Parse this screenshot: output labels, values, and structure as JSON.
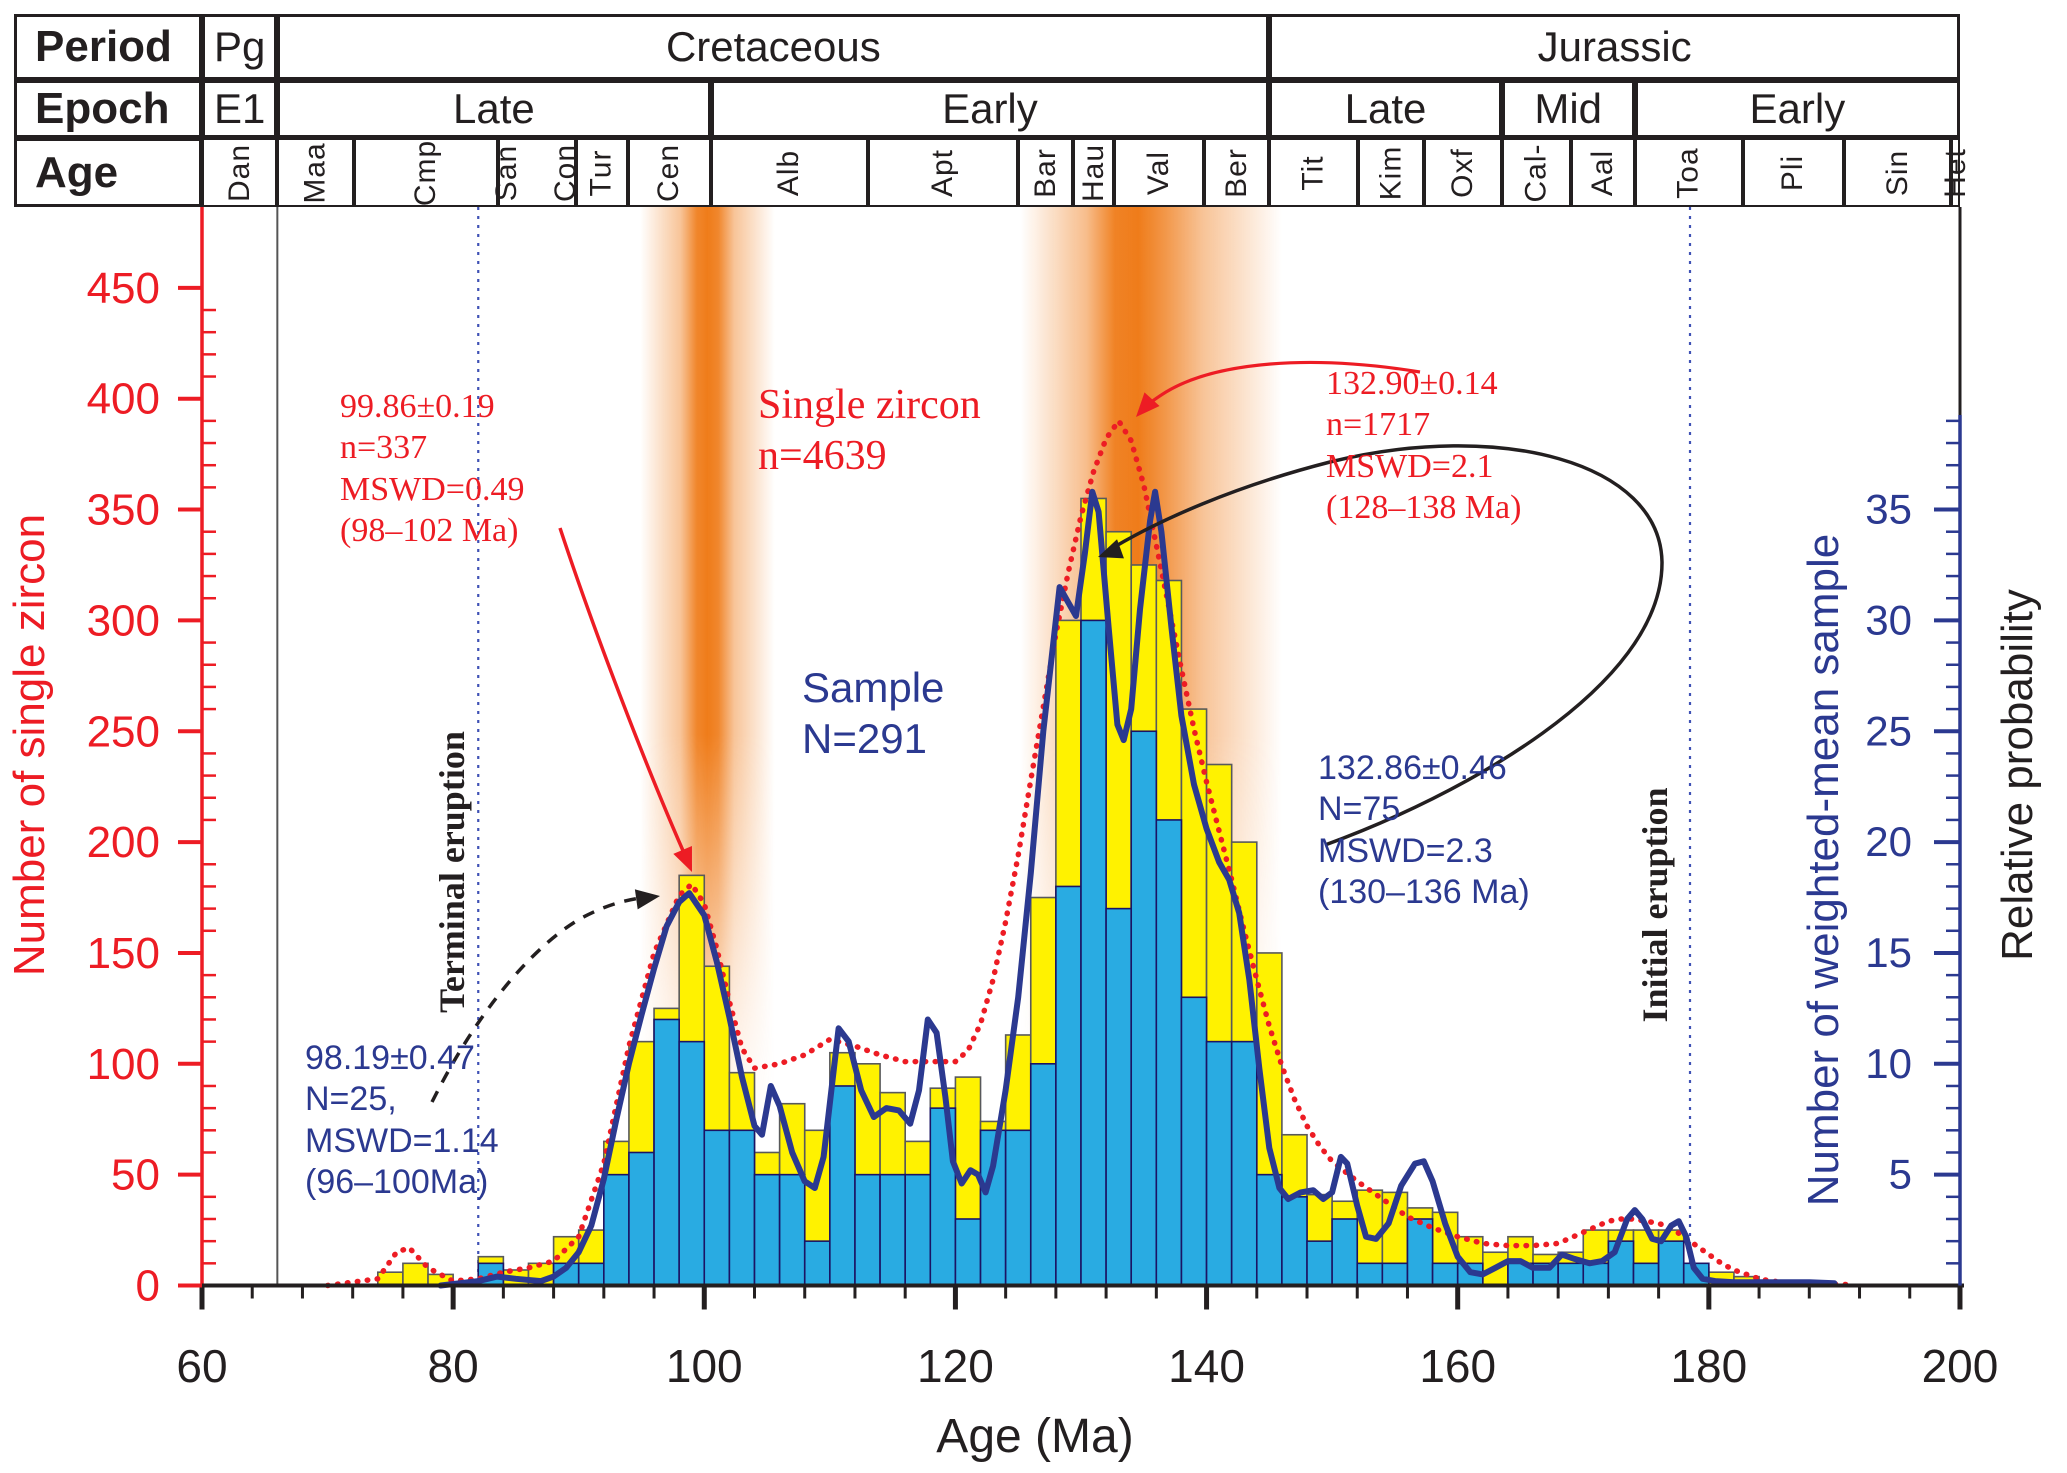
{
  "figure": {
    "x_axis": {
      "label": "Age (Ma)",
      "min": 60,
      "max": 200,
      "major_step": 20,
      "minor_step": 4
    },
    "y_left": {
      "label": "Number of single zircon",
      "min": 0,
      "max": 450,
      "major_step": 50,
      "minor_step": 10,
      "color": "#ed1c24"
    },
    "y_right_blue": {
      "label": "Number of weighted-mean sample",
      "ticks": [
        5,
        10,
        15,
        20,
        25,
        30,
        35
      ],
      "scale_to_left": 10,
      "color": "#2b3990"
    },
    "y_right_black": {
      "label": "Relative probability"
    }
  },
  "header": {
    "row_labels": {
      "period": "Period",
      "epoch": "Epoch",
      "age": "Age"
    },
    "periods": [
      {
        "label": "Pg",
        "start": 60,
        "end": 66
      },
      {
        "label": "Cretaceous",
        "start": 66,
        "end": 145
      },
      {
        "label": "Jurassic",
        "start": 145,
        "end": 200
      }
    ],
    "epochs": [
      {
        "label": "E1",
        "start": 60,
        "end": 66
      },
      {
        "label": "Late",
        "start": 66,
        "end": 100.5
      },
      {
        "label": "Early",
        "start": 100.5,
        "end": 145
      },
      {
        "label": "Late",
        "start": 145,
        "end": 163.5
      },
      {
        "label": "Mid",
        "start": 163.5,
        "end": 174.1
      },
      {
        "label": "Early",
        "start": 174.1,
        "end": 200
      }
    ],
    "ages": [
      {
        "label": [
          "Dan"
        ],
        "start": 60,
        "end": 66
      },
      {
        "label": [
          "Maa"
        ],
        "start": 66,
        "end": 72.1
      },
      {
        "label": [
          "Cmp"
        ],
        "start": 72.1,
        "end": 83.6
      },
      {
        "label": [
          "San",
          "Con"
        ],
        "start": 83.6,
        "end": 89.8
      },
      {
        "label": [
          "Tur"
        ],
        "start": 89.8,
        "end": 93.9
      },
      {
        "label": [
          "Cen"
        ],
        "start": 93.9,
        "end": 100.5
      },
      {
        "label": [
          "Alb"
        ],
        "start": 100.5,
        "end": 113
      },
      {
        "label": [
          "Apt"
        ],
        "start": 113,
        "end": 125
      },
      {
        "label": [
          "Bar"
        ],
        "start": 125,
        "end": 129.4
      },
      {
        "label": [
          "Hau"
        ],
        "start": 129.4,
        "end": 132.6
      },
      {
        "label": [
          "Val"
        ],
        "start": 132.6,
        "end": 139.8
      },
      {
        "label": [
          "Ber"
        ],
        "start": 139.8,
        "end": 145
      },
      {
        "label": [
          "Tit"
        ],
        "start": 145,
        "end": 152.1
      },
      {
        "label": [
          "Kim"
        ],
        "start": 152.1,
        "end": 157.3
      },
      {
        "label": [
          "Oxf"
        ],
        "start": 157.3,
        "end": 163.5
      },
      {
        "label": [
          "Cal-"
        ],
        "start": 163.5,
        "end": 169
      },
      {
        "label": [
          "Aal"
        ],
        "start": 169,
        "end": 174.1
      },
      {
        "label": [
          "Toa"
        ],
        "start": 174.1,
        "end": 182.7
      },
      {
        "label": [
          "Pli"
        ],
        "start": 182.7,
        "end": 190.8
      },
      {
        "label": [
          "Sin"
        ],
        "start": 190.8,
        "end": 199.3
      },
      {
        "label": [
          "Het"
        ],
        "start": 199.3,
        "end": 200
      }
    ]
  },
  "eruption_lines": [
    {
      "name": "terminal",
      "label": "Terminal eruption",
      "ma": 82
    },
    {
      "name": "initial",
      "label": "Initial eruption",
      "ma": 178.5
    }
  ],
  "boundary_line_ma": 66,
  "annotations": {
    "red_left": {
      "lines": [
        "99.86±0.19",
        "n=337",
        "MSWD=0.49",
        "(98–102 Ma)"
      ]
    },
    "single_zircon": {
      "lines": [
        "Single zircon",
        "n=4639"
      ]
    },
    "sample": {
      "lines": [
        "Sample",
        "N=291"
      ]
    },
    "red_right": {
      "lines": [
        "132.90±0.14",
        "n=1717",
        "MSWD=2.1",
        "(128–138 Ma)"
      ]
    },
    "blue_right": {
      "lines": [
        "132.86±0.46",
        "N=75",
        "MSWD=2.3",
        "(130–136 Ma)"
      ]
    },
    "blue_left": {
      "lines": [
        "98.19±0.47",
        "N=25,",
        "MSWD=1.14",
        "(96–100Ma)"
      ]
    }
  },
  "chart_data": {
    "type": "bar",
    "subtype": "histogram_with_probability_curves",
    "bin_width_ma": 2,
    "bars_note": "[bin start Ma, single-zircon count (left axis), weighted-mean sample count (right blue axis)]",
    "bars": [
      [
        74,
        6,
        0
      ],
      [
        76,
        10,
        0
      ],
      [
        78,
        5,
        0
      ],
      [
        80,
        0,
        0
      ],
      [
        82,
        13,
        1
      ],
      [
        84,
        7,
        0
      ],
      [
        86,
        10,
        0
      ],
      [
        88,
        22,
        1
      ],
      [
        90,
        25,
        1
      ],
      [
        92,
        65,
        5
      ],
      [
        94,
        110,
        6
      ],
      [
        96,
        125,
        12
      ],
      [
        98,
        185,
        11
      ],
      [
        100,
        144,
        7
      ],
      [
        102,
        96,
        7
      ],
      [
        104,
        60,
        5
      ],
      [
        106,
        82,
        5
      ],
      [
        108,
        70,
        2
      ],
      [
        110,
        105,
        9
      ],
      [
        112,
        100,
        5
      ],
      [
        114,
        87,
        5
      ],
      [
        116,
        65,
        5
      ],
      [
        118,
        89,
        8
      ],
      [
        120,
        94,
        3
      ],
      [
        122,
        74,
        7
      ],
      [
        124,
        113,
        7
      ],
      [
        126,
        175,
        10
      ],
      [
        128,
        300,
        18
      ],
      [
        130,
        355,
        30
      ],
      [
        132,
        340,
        17
      ],
      [
        134,
        325,
        25
      ],
      [
        136,
        318,
        21
      ],
      [
        138,
        260,
        13
      ],
      [
        140,
        235,
        11
      ],
      [
        142,
        200,
        11
      ],
      [
        144,
        150,
        5
      ],
      [
        146,
        68,
        4
      ],
      [
        148,
        41,
        2
      ],
      [
        150,
        38,
        3
      ],
      [
        152,
        43,
        1
      ],
      [
        154,
        42,
        1
      ],
      [
        156,
        35,
        3
      ],
      [
        158,
        33,
        1
      ],
      [
        160,
        22,
        1
      ],
      [
        162,
        15,
        0
      ],
      [
        164,
        22,
        1
      ],
      [
        166,
        14,
        1
      ],
      [
        168,
        15,
        1
      ],
      [
        170,
        25,
        1
      ],
      [
        172,
        25,
        2
      ],
      [
        174,
        25,
        1
      ],
      [
        176,
        25,
        2
      ],
      [
        178,
        8,
        1
      ],
      [
        180,
        6,
        0
      ],
      [
        182,
        4,
        0
      ]
    ],
    "red_probability_curve": [
      [
        70,
        0
      ],
      [
        74,
        3
      ],
      [
        75.5,
        15
      ],
      [
        76.5,
        17
      ],
      [
        78,
        8
      ],
      [
        80,
        2
      ],
      [
        82,
        3
      ],
      [
        84,
        6
      ],
      [
        86,
        8
      ],
      [
        88,
        11
      ],
      [
        90,
        22
      ],
      [
        92,
        55
      ],
      [
        94,
        108
      ],
      [
        96,
        150
      ],
      [
        98,
        176
      ],
      [
        99,
        181
      ],
      [
        100,
        172
      ],
      [
        101,
        152
      ],
      [
        102,
        128
      ],
      [
        103,
        107
      ],
      [
        104,
        98
      ],
      [
        106,
        100
      ],
      [
        108,
        104
      ],
      [
        110,
        111
      ],
      [
        112,
        108
      ],
      [
        114,
        104
      ],
      [
        116,
        101
      ],
      [
        118,
        101
      ],
      [
        120,
        101
      ],
      [
        121,
        106
      ],
      [
        122,
        118
      ],
      [
        123,
        138
      ],
      [
        124,
        164
      ],
      [
        125,
        194
      ],
      [
        126,
        228
      ],
      [
        127,
        261
      ],
      [
        128,
        294
      ],
      [
        129,
        322
      ],
      [
        130,
        347
      ],
      [
        131,
        367
      ],
      [
        132,
        382
      ],
      [
        133,
        390
      ],
      [
        134,
        381
      ],
      [
        135,
        361
      ],
      [
        136,
        334
      ],
      [
        137,
        306
      ],
      [
        138,
        278
      ],
      [
        139,
        251
      ],
      [
        140,
        227
      ],
      [
        141,
        205
      ],
      [
        142,
        183
      ],
      [
        143,
        160
      ],
      [
        144,
        138
      ],
      [
        145,
        117
      ],
      [
        146,
        99
      ],
      [
        147,
        84
      ],
      [
        148,
        72
      ],
      [
        149,
        63
      ],
      [
        150,
        56
      ],
      [
        152,
        47
      ],
      [
        154,
        39
      ],
      [
        156,
        31
      ],
      [
        158,
        26
      ],
      [
        160,
        22
      ],
      [
        162,
        19
      ],
      [
        164,
        18
      ],
      [
        166,
        18
      ],
      [
        168,
        19
      ],
      [
        170,
        24
      ],
      [
        172,
        29
      ],
      [
        173,
        30
      ],
      [
        174,
        30
      ],
      [
        175,
        29
      ],
      [
        176,
        28
      ],
      [
        177,
        26
      ],
      [
        178,
        22
      ],
      [
        179,
        18
      ],
      [
        180,
        14
      ],
      [
        181,
        10
      ],
      [
        182,
        7
      ],
      [
        183,
        5
      ],
      [
        184,
        3
      ],
      [
        185,
        2
      ],
      [
        186,
        1.5
      ],
      [
        188,
        1
      ],
      [
        190,
        0.6
      ],
      [
        191,
        0.4
      ]
    ],
    "blue_sample_curve": [
      [
        79,
        0
      ],
      [
        82,
        2
      ],
      [
        83.5,
        4
      ],
      [
        85,
        3
      ],
      [
        87,
        2
      ],
      [
        88,
        4
      ],
      [
        89,
        8
      ],
      [
        90,
        15
      ],
      [
        91,
        27
      ],
      [
        92,
        48
      ],
      [
        93,
        75
      ],
      [
        94,
        100
      ],
      [
        95,
        122
      ],
      [
        96,
        143
      ],
      [
        97,
        162
      ],
      [
        98,
        173
      ],
      [
        98.8,
        177
      ],
      [
        100,
        167
      ],
      [
        101,
        146
      ],
      [
        102,
        121
      ],
      [
        103,
        94
      ],
      [
        104,
        72
      ],
      [
        104.6,
        68
      ],
      [
        105.3,
        90
      ],
      [
        106,
        81
      ],
      [
        107,
        60
      ],
      [
        108,
        47
      ],
      [
        108.8,
        44
      ],
      [
        109.5,
        58
      ],
      [
        110.7,
        116
      ],
      [
        111.5,
        110
      ],
      [
        112.5,
        88
      ],
      [
        113.5,
        76
      ],
      [
        114.5,
        80
      ],
      [
        115.5,
        79
      ],
      [
        116.4,
        73
      ],
      [
        117.1,
        88
      ],
      [
        117.8,
        120
      ],
      [
        118.5,
        114
      ],
      [
        119.2,
        85
      ],
      [
        119.8,
        56
      ],
      [
        120.5,
        46
      ],
      [
        121.2,
        52
      ],
      [
        121.8,
        50
      ],
      [
        122.4,
        42
      ],
      [
        123,
        54
      ],
      [
        124,
        88
      ],
      [
        125,
        130
      ],
      [
        126,
        186
      ],
      [
        127,
        250
      ],
      [
        128.3,
        315
      ],
      [
        129,
        308
      ],
      [
        129.6,
        302
      ],
      [
        130.3,
        330
      ],
      [
        130.9,
        358
      ],
      [
        131.4,
        349
      ],
      [
        132.2,
        297
      ],
      [
        132.9,
        253
      ],
      [
        133.4,
        246
      ],
      [
        134,
        260
      ],
      [
        134.7,
        305
      ],
      [
        135.5,
        345
      ],
      [
        135.9,
        358
      ],
      [
        136.4,
        340
      ],
      [
        137.2,
        297
      ],
      [
        138,
        257
      ],
      [
        139,
        226
      ],
      [
        140,
        206
      ],
      [
        141,
        191
      ],
      [
        141.8,
        183
      ],
      [
        142.6,
        168
      ],
      [
        143.4,
        138
      ],
      [
        144.2,
        98
      ],
      [
        145,
        62
      ],
      [
        145.8,
        44
      ],
      [
        146.5,
        39
      ],
      [
        147.5,
        42
      ],
      [
        148.5,
        43
      ],
      [
        149.3,
        39
      ],
      [
        150,
        42
      ],
      [
        150.7,
        58
      ],
      [
        151.2,
        55
      ],
      [
        152,
        36
      ],
      [
        152.7,
        22
      ],
      [
        153.5,
        21
      ],
      [
        154.5,
        28
      ],
      [
        155.5,
        45
      ],
      [
        156.6,
        55
      ],
      [
        157.3,
        56
      ],
      [
        158,
        47
      ],
      [
        159,
        28
      ],
      [
        160,
        13
      ],
      [
        161,
        6
      ],
      [
        162,
        5
      ],
      [
        163,
        8
      ],
      [
        164,
        11
      ],
      [
        165,
        11
      ],
      [
        166,
        8
      ],
      [
        167.3,
        8
      ],
      [
        168.3,
        14
      ],
      [
        169.3,
        12
      ],
      [
        170.5,
        10
      ],
      [
        171.5,
        11
      ],
      [
        172.5,
        15
      ],
      [
        173.5,
        30
      ],
      [
        174.1,
        34
      ],
      [
        174.7,
        30
      ],
      [
        175.5,
        21
      ],
      [
        176.2,
        20
      ],
      [
        177,
        27
      ],
      [
        177.6,
        29
      ],
      [
        178.2,
        22
      ],
      [
        178.8,
        8
      ],
      [
        179.5,
        3
      ],
      [
        180.5,
        2
      ],
      [
        182,
        1.5
      ],
      [
        185,
        1.5
      ],
      [
        188,
        1.5
      ],
      [
        190,
        1
      ]
    ],
    "highlight_bands": [
      {
        "start_ma": 94.9,
        "end_ma": 105.6,
        "color": "#ef7c1a",
        "stops": [
          [
            0,
            0
          ],
          [
            0.3,
            0.45
          ],
          [
            0.42,
            0.92
          ],
          [
            0.5,
            1
          ],
          [
            0.58,
            0.92
          ],
          [
            0.7,
            0.45
          ],
          [
            1,
            0
          ]
        ]
      },
      {
        "start_ma": 125.2,
        "end_ma": 146.0,
        "color": "#ef7c1a",
        "stops": [
          [
            0,
            0
          ],
          [
            0.25,
            0.5
          ],
          [
            0.36,
            0.95
          ],
          [
            0.45,
            1
          ],
          [
            0.55,
            0.8
          ],
          [
            0.7,
            0.45
          ],
          [
            1,
            0
          ]
        ]
      }
    ],
    "colors": {
      "single_zircon_bar": "#fff200",
      "bar_outline": "#58595b",
      "sample_bar": "#29abe2",
      "sample_bar_outline": "#1b1464",
      "red_curve": "#ed1c24",
      "blue_curve": "#2b3990",
      "axis_black": "#231f20",
      "eruption_line": "#3f51b5",
      "boundary_line": "#555555"
    },
    "title": "",
    "xlabel": "Age (Ma)",
    "ylabel_left": "Number of single zircon",
    "ylabel_right": "Number of weighted-mean sample",
    "xlim": [
      60,
      200
    ],
    "ylim_left": [
      0,
      450
    ]
  }
}
